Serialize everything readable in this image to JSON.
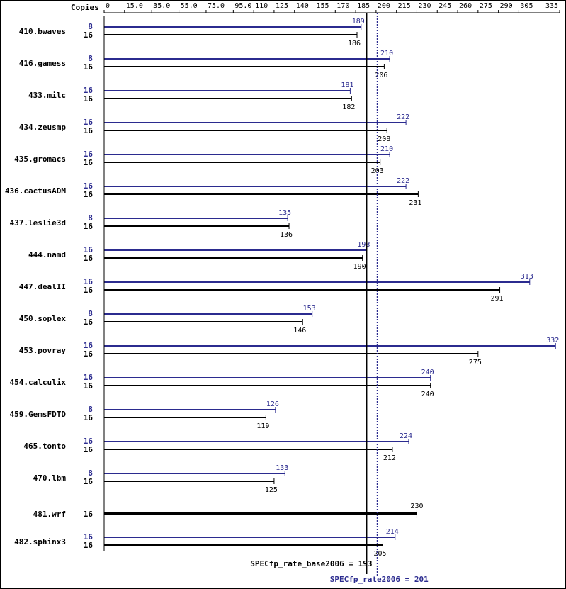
{
  "chart_data": {
    "type": "bar",
    "copies_header": "Copies",
    "axis_ticks": [
      "0",
      "15.0",
      "35.0",
      "55.0",
      "75.0",
      "95.0",
      "110",
      "125",
      "140",
      "155",
      "170",
      "185",
      "200",
      "215",
      "230",
      "245",
      "260",
      "275",
      "290",
      "305",
      "335"
    ],
    "xlim": [
      0,
      335
    ],
    "colors": {
      "peak": "#2b2b8f",
      "base": "#000000",
      "frame": "#000000"
    },
    "series": [
      {
        "name": "peak",
        "legend": "SPECfp_rate2006",
        "summary": 201
      },
      {
        "name": "base",
        "legend": "SPECfp_rate_base2006",
        "summary": 193
      }
    ],
    "summary_labels": {
      "base": "SPECfp_rate_base2006 = 193",
      "peak": "SPECfp_rate2006 = 201"
    },
    "benchmarks": [
      {
        "name": "410.bwaves",
        "peak_copies": "8",
        "peak": 189,
        "peak_label": "189",
        "base_copies": "16",
        "base": 186,
        "base_label": "186"
      },
      {
        "name": "416.gamess",
        "peak_copies": "8",
        "peak": 210,
        "peak_label": "210",
        "base_copies": "16",
        "base": 206,
        "base_label": "206"
      },
      {
        "name": "433.milc",
        "peak_copies": "16",
        "peak": 181,
        "peak_label": "181",
        "base_copies": "16",
        "base": 182,
        "base_label": "182"
      },
      {
        "name": "434.zeusmp",
        "peak_copies": "16",
        "peak": 222,
        "peak_label": "222",
        "base_copies": "16",
        "base": 208,
        "base_label": "208"
      },
      {
        "name": "435.gromacs",
        "peak_copies": "16",
        "peak": 210,
        "peak_label": "210",
        "base_copies": "16",
        "base": 203,
        "base_label": "203"
      },
      {
        "name": "436.cactusADM",
        "peak_copies": "16",
        "peak": 222,
        "peak_label": "222",
        "base_copies": "16",
        "base": 231,
        "base_label": "231"
      },
      {
        "name": "437.leslie3d",
        "peak_copies": "8",
        "peak": 135,
        "peak_label": "135",
        "base_copies": "16",
        "base": 136,
        "base_label": "136"
      },
      {
        "name": "444.namd",
        "peak_copies": "16",
        "peak": 193,
        "peak_label": "193",
        "base_copies": "16",
        "base": 190,
        "base_label": "190"
      },
      {
        "name": "447.dealII",
        "peak_copies": "16",
        "peak": 313,
        "peak_label": "313",
        "base_copies": "16",
        "base": 291,
        "base_label": "291"
      },
      {
        "name": "450.soplex",
        "peak_copies": "8",
        "peak": 153,
        "peak_label": "153",
        "base_copies": "16",
        "base": 146,
        "base_label": "146"
      },
      {
        "name": "453.povray",
        "peak_copies": "16",
        "peak": 332,
        "peak_label": "332",
        "base_copies": "16",
        "base": 275,
        "base_label": "275"
      },
      {
        "name": "454.calculix",
        "peak_copies": "16",
        "peak": 240,
        "peak_label": "240",
        "base_copies": "16",
        "base": 240,
        "base_label": "240"
      },
      {
        "name": "459.GemsFDTD",
        "peak_copies": "8",
        "peak": 126,
        "peak_label": "126",
        "base_copies": "16",
        "base": 119,
        "base_label": "119"
      },
      {
        "name": "465.tonto",
        "peak_copies": "16",
        "peak": 224,
        "peak_label": "224",
        "base_copies": "16",
        "base": 212,
        "base_label": "212"
      },
      {
        "name": "470.lbm",
        "peak_copies": "8",
        "peak": 133,
        "peak_label": "133",
        "base_copies": "16",
        "base": 125,
        "base_label": "125"
      },
      {
        "name": "481.wrf",
        "base_copies": "16",
        "base": 230,
        "base_label": "230"
      },
      {
        "name": "482.sphinx3",
        "peak_copies": "16",
        "peak": 214,
        "peak_label": "214",
        "base_copies": "16",
        "base": 205,
        "base_label": "205"
      }
    ]
  }
}
